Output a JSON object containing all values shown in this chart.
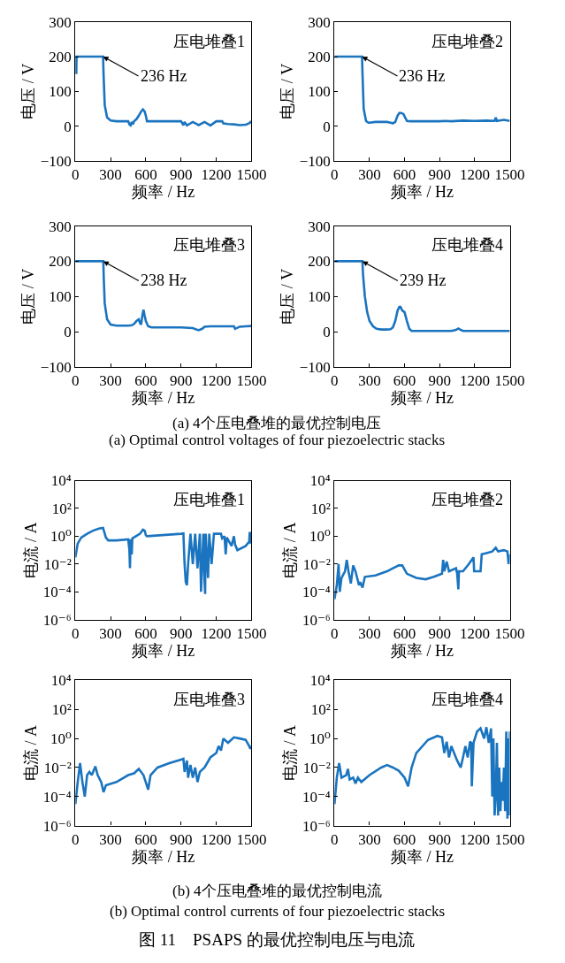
{
  "chart_data": [
    {
      "type": "line",
      "xlabel": "频率 / Hz",
      "ylabel": "电压 / V",
      "xlim": [
        0,
        1500
      ],
      "ylim": [
        -100,
        300
      ],
      "xticks": [
        0,
        300,
        600,
        900,
        1200,
        1500
      ],
      "yticks": [
        {
          "value": -100,
          "label": "−100"
        },
        0,
        100,
        200,
        300
      ],
      "annotations": [
        "压电堆叠1",
        {
          "text": "236 Hz",
          "x": 236,
          "y": 200
        }
      ],
      "series": [
        {
          "color": "#1a74bf",
          "x": [
            0,
            5,
            8,
            10,
            15,
            230,
            236,
            240,
            250,
            270,
            300,
            350,
            400,
            450,
            460,
            470,
            480,
            490,
            500,
            520,
            540,
            560,
            575,
            590,
            600,
            610,
            650,
            700,
            800,
            900,
            920,
            930,
            950,
            1000,
            1050,
            1100,
            1150,
            1200,
            1210,
            1250,
            1260,
            1300,
            1350,
            1400,
            1450,
            1480,
            1490,
            1500
          ],
          "values": [
            200,
            200,
            150,
            200,
            200,
            200,
            200,
            150,
            60,
            25,
            16,
            14,
            14,
            14,
            5,
            2,
            12,
            5,
            14,
            20,
            30,
            42,
            48,
            42,
            30,
            14,
            14,
            14,
            14,
            14,
            3,
            12,
            2,
            12,
            3,
            12,
            2,
            14,
            14,
            14,
            8,
            6,
            5,
            3,
            4,
            8,
            12,
            10
          ]
        }
      ]
    },
    {
      "type": "line",
      "xlabel": "频率 / Hz",
      "ylabel": "电压 / V",
      "xlim": [
        0,
        1500
      ],
      "ylim": [
        -100,
        300
      ],
      "xticks": [
        0,
        300,
        600,
        900,
        1200,
        1500
      ],
      "yticks": [
        {
          "value": -100,
          "label": "−100"
        },
        0,
        100,
        200,
        300
      ],
      "annotations": [
        "压电堆叠2",
        {
          "text": "236 Hz",
          "x": 236,
          "y": 200
        }
      ],
      "series": [
        {
          "color": "#1a74bf",
          "x": [
            0,
            230,
            236,
            240,
            250,
            270,
            290,
            300,
            350,
            400,
            450,
            480,
            500,
            520,
            540,
            555,
            570,
            590,
            600,
            620,
            650,
            700,
            800,
            900,
            950,
            1000,
            1100,
            1200,
            1300,
            1370,
            1380,
            1390,
            1450,
            1500
          ],
          "values": [
            200,
            200,
            200,
            150,
            50,
            15,
            10,
            10,
            12,
            12,
            12,
            10,
            8,
            12,
            30,
            38,
            38,
            35,
            28,
            15,
            14,
            14,
            14,
            14,
            15,
            14,
            16,
            15,
            16,
            15,
            25,
            15,
            18,
            15
          ]
        }
      ]
    },
    {
      "type": "line",
      "xlabel": "频率 / Hz",
      "ylabel": "电压 / V",
      "xlim": [
        0,
        1500
      ],
      "ylim": [
        -100,
        300
      ],
      "xticks": [
        0,
        300,
        600,
        900,
        1200,
        1500
      ],
      "yticks": [
        {
          "value": -100,
          "label": "−100"
        },
        0,
        100,
        200,
        300
      ],
      "annotations": [
        "压电堆叠3",
        {
          "text": "238 Hz",
          "x": 238,
          "y": 200
        }
      ],
      "series": [
        {
          "color": "#1a74bf",
          "x": [
            0,
            230,
            238,
            242,
            250,
            270,
            300,
            350,
            400,
            450,
            480,
            500,
            520,
            540,
            550,
            560,
            570,
            580,
            590,
            600,
            620,
            650,
            700,
            800,
            900,
            1000,
            1030,
            1050,
            1080,
            1100,
            1150,
            1200,
            1300,
            1350,
            1360,
            1400,
            1450,
            1500
          ],
          "values": [
            200,
            200,
            200,
            150,
            80,
            35,
            20,
            17,
            17,
            17,
            18,
            22,
            30,
            35,
            25,
            20,
            45,
            62,
            45,
            30,
            15,
            12,
            12,
            12,
            12,
            10,
            6,
            4,
            8,
            14,
            15,
            15,
            15,
            15,
            8,
            14,
            15,
            16
          ]
        }
      ]
    },
    {
      "type": "line",
      "xlabel": "频率 / Hz",
      "ylabel": "电压 / V",
      "xlim": [
        0,
        1500
      ],
      "ylim": [
        -100,
        300
      ],
      "xticks": [
        0,
        300,
        600,
        900,
        1200,
        1500
      ],
      "yticks": [
        {
          "value": -100,
          "label": "−100"
        },
        0,
        100,
        200,
        300
      ],
      "annotations": [
        "压电堆叠4",
        {
          "text": "239 Hz",
          "x": 239,
          "y": 200
        },
        "(a) 4个压电叠堆的最优控制电压",
        "(a) Optimal control voltages of four piezoelectric stacks"
      ],
      "series": [
        {
          "color": "#1a74bf",
          "x": [
            0,
            230,
            239,
            245,
            260,
            280,
            300,
            330,
            360,
            400,
            450,
            480,
            500,
            520,
            540,
            555,
            565,
            580,
            600,
            620,
            640,
            660,
            700,
            800,
            900,
            1000,
            1040,
            1060,
            1080,
            1100,
            1200,
            1300,
            1500
          ],
          "values": [
            200,
            200,
            200,
            160,
            100,
            55,
            30,
            15,
            8,
            6,
            6,
            7,
            12,
            30,
            60,
            70,
            70,
            60,
            55,
            30,
            8,
            2,
            2,
            2,
            2,
            2,
            5,
            9,
            5,
            2,
            2,
            2,
            2
          ]
        }
      ]
    },
    {
      "type": "line",
      "xlabel": "频率 / Hz",
      "ylabel": "电流 / A",
      "log": "y",
      "xlim": [
        0,
        1500
      ],
      "ylim": [
        1e-06,
        10000
      ],
      "xticks": [
        0,
        300,
        600,
        900,
        1200,
        1500
      ],
      "yticks": [
        {
          "value": 1e-06,
          "label": "10⁻⁶"
        },
        {
          "value": 0.0001,
          "label": "10⁻⁴"
        },
        {
          "value": 0.01,
          "label": "10⁻²"
        },
        {
          "value": 1,
          "label": "10⁰"
        },
        {
          "value": 100,
          "label": "10²"
        },
        {
          "value": 10000,
          "label": "10⁴"
        }
      ],
      "annotations": [
        "压电堆叠1"
      ],
      "series": [
        {
          "color": "#1a74bf",
          "x": [
            0,
            20,
            50,
            100,
            150,
            200,
            236,
            240,
            260,
            280,
            350,
            450,
            460,
            465,
            470,
            480,
            485,
            550,
            575,
            590,
            600,
            610,
            900,
            920,
            930,
            940,
            950,
            960,
            980,
            1000,
            1020,
            1040,
            1060,
            1070,
            1080,
            1090,
            1100,
            1105,
            1110,
            1130,
            1140,
            1160,
            1180,
            1200,
            1240,
            1250,
            1270,
            1280,
            1290,
            1330,
            1350,
            1360,
            1380,
            1450,
            1480,
            1485,
            1490,
            1495,
            1500
          ],
          "values": [
            0.03,
            0.3,
            0.8,
            1.5,
            2.5,
            3.5,
            4,
            3,
            0.8,
            0.5,
            0.5,
            0.6,
            0.1,
            0.005,
            0.6,
            0.05,
            0.7,
            1.5,
            3,
            2.5,
            1.2,
            1,
            1.5,
            1.6,
            0.01,
            0.0005,
            0.0003,
            0.01,
            1.5,
            0.01,
            1.5,
            0.005,
            1.5,
            0.0001,
            0.01,
            1.5,
            0.0005,
            7e-05,
            1.5,
            0.001,
            1.5,
            0.01,
            1.5,
            1.5,
            1.5,
            0.7,
            1,
            0.05,
            0.8,
            0.2,
            1,
            0.25,
            0.1,
            0.2,
            0.4,
            2,
            0.3,
            2,
            0.6
          ]
        }
      ]
    },
    {
      "type": "line",
      "xlabel": "频率 / Hz",
      "ylabel": "电流 / A",
      "log": "y",
      "xlim": [
        0,
        1500
      ],
      "ylim": [
        1e-06,
        10000
      ],
      "xticks": [
        0,
        300,
        600,
        900,
        1200,
        1500
      ],
      "yticks": [
        {
          "value": 1e-06,
          "label": "10⁻⁶"
        },
        {
          "value": 0.0001,
          "label": "10⁻⁴"
        },
        {
          "value": 0.01,
          "label": "10⁻²"
        },
        {
          "value": 1,
          "label": "10⁰"
        },
        {
          "value": 100,
          "label": "10²"
        },
        {
          "value": 10000,
          "label": "10⁴"
        }
      ],
      "annotations": [
        "压电堆叠2"
      ],
      "series": [
        {
          "color": "#1a74bf",
          "x": [
            0,
            20,
            35,
            45,
            60,
            90,
            105,
            120,
            140,
            160,
            180,
            210,
            220,
            240,
            260,
            350,
            450,
            500,
            550,
            580,
            620,
            700,
            780,
            850,
            920,
            930,
            940,
            960,
            980,
            1040,
            1050,
            1060,
            1065,
            1100,
            1150,
            1190,
            1195,
            1250,
            1260,
            1300,
            1350,
            1380,
            1400,
            1450,
            1480,
            1490,
            1500
          ],
          "values": [
            3e-05,
            0.0003,
            0.01,
            0.0001,
            0.001,
            0.003,
            0.02,
            0.003,
            0.0004,
            0.008,
            0.003,
            0.0003,
            0.0005,
            0.0002,
            0.0012,
            0.0015,
            0.003,
            0.005,
            0.008,
            0.008,
            0.002,
            0.001,
            0.0008,
            0.0012,
            0.002,
            0.02,
            0.003,
            0.015,
            0.003,
            0.005,
            0.002,
            0.00015,
            0.003,
            0.003,
            0.01,
            0.03,
            0.003,
            0.003,
            0.05,
            0.06,
            0.08,
            0.15,
            0.08,
            0.1,
            0.08,
            0.01,
            0.05
          ]
        }
      ]
    },
    {
      "type": "line",
      "xlabel": "频率 / Hz",
      "ylabel": "电流 / A",
      "log": "y",
      "xlim": [
        0,
        1500
      ],
      "ylim": [
        1e-06,
        10000
      ],
      "xticks": [
        0,
        300,
        600,
        900,
        1200,
        1500
      ],
      "yticks": [
        {
          "value": 1e-06,
          "label": "10⁻⁶"
        },
        {
          "value": 0.0001,
          "label": "10⁻⁴"
        },
        {
          "value": 0.01,
          "label": "10⁻²"
        },
        {
          "value": 1,
          "label": "10⁰"
        },
        {
          "value": 100,
          "label": "10²"
        },
        {
          "value": 10000,
          "label": "10⁴"
        }
      ],
      "annotations": [
        "压电堆叠3"
      ],
      "series": [
        {
          "color": "#1a74bf",
          "x": [
            0,
            20,
            40,
            60,
            80,
            100,
            120,
            140,
            170,
            190,
            220,
            240,
            260,
            350,
            450,
            500,
            540,
            580,
            620,
            640,
            700,
            800,
            900,
            920,
            930,
            950,
            960,
            980,
            1000,
            1020,
            1040,
            1060,
            1100,
            1150,
            1200,
            1220,
            1240,
            1260,
            1300,
            1350,
            1400,
            1450,
            1480,
            1490,
            1500
          ],
          "values": [
            3e-05,
            0.001,
            0.02,
            0.001,
            0.0001,
            0.003,
            0.005,
            0.003,
            0.012,
            0.003,
            0.001,
            0.0002,
            0.0006,
            0.001,
            0.003,
            0.004,
            0.008,
            0.003,
            0.0003,
            0.003,
            0.01,
            0.02,
            0.035,
            0.04,
            0.005,
            0.03,
            0.002,
            0.015,
            0.002,
            0.01,
            0.001,
            0.005,
            0.01,
            0.05,
            0.1,
            0.3,
            0.15,
            1,
            0.5,
            1.2,
            1,
            0.8,
            0.3,
            0.2,
            0.3
          ]
        }
      ]
    },
    {
      "type": "line",
      "xlabel": "频率 / Hz",
      "ylabel": "电流 / A",
      "log": "y",
      "xlim": [
        0,
        1500
      ],
      "ylim": [
        1e-06,
        10000
      ],
      "xticks": [
        0,
        300,
        600,
        900,
        1200,
        1500
      ],
      "yticks": [
        {
          "value": 1e-06,
          "label": "10⁻⁶"
        },
        {
          "value": 0.0001,
          "label": "10⁻⁴"
        },
        {
          "value": 0.01,
          "label": "10⁻²"
        },
        {
          "value": 1,
          "label": "10⁰"
        },
        {
          "value": 100,
          "label": "10²"
        },
        {
          "value": 10000,
          "label": "10⁴"
        }
      ],
      "annotations": [
        "压电堆叠4",
        "(b) 4个压电叠堆的最优控制电流",
        "(b) Optimal control currents of four piezoelectric stacks",
        "图 11　PSAPS 的最优控制电压与电流"
      ],
      "series": [
        {
          "color": "#1a74bf",
          "x": [
            0,
            20,
            40,
            60,
            100,
            115,
            130,
            160,
            180,
            200,
            230,
            300,
            400,
            450,
            500,
            550,
            600,
            630,
            660,
            700,
            800,
            880,
            920,
            940,
            960,
            980,
            1000,
            1050,
            1080,
            1100,
            1120,
            1140,
            1160,
            1170,
            1175,
            1190,
            1220,
            1250,
            1280,
            1300,
            1320,
            1340,
            1350,
            1360,
            1370,
            1380,
            1390,
            1400,
            1410,
            1420,
            1430,
            1440,
            1450,
            1460,
            1470,
            1480,
            1490,
            1495,
            1500
          ],
          "values": [
            3e-05,
            0.002,
            0.02,
            0.002,
            0.003,
            0.008,
            0.0015,
            0.002,
            0.0008,
            0.002,
            0.001,
            0.003,
            0.01,
            0.015,
            0.01,
            0.006,
            0.002,
            0.0005,
            0.01,
            0.1,
            0.8,
            1.5,
            1.2,
            0.1,
            0.6,
            0.05,
            0.3,
            0.03,
            0.01,
            0.05,
            0.3,
            0.05,
            0.6,
            0.5,
            0.0005,
            0.5,
            3,
            5,
            1,
            6,
            0.5,
            5,
            0.0001,
            1,
            5e-06,
            0.0001,
            0.5,
            5e-06,
            0.01,
            1e-05,
            0.001,
            5e-05,
            0.01,
            1e-05,
            3,
            3e-06,
            1,
            5e-06,
            3
          ]
        }
      ]
    }
  ]
}
